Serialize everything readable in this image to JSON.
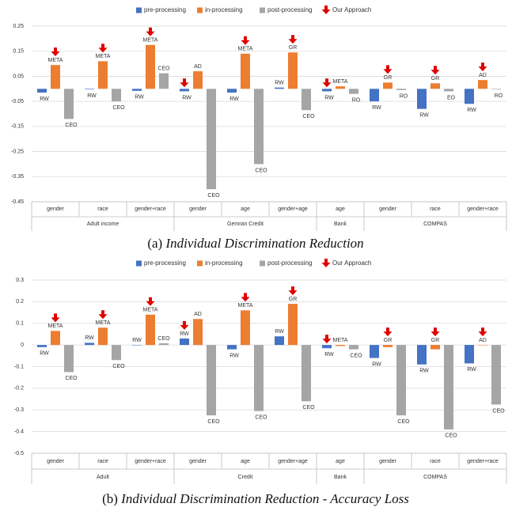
{
  "chart_data": [
    {
      "type": "bar",
      "caption_prefix": "(a)",
      "caption": "Individual Discrimination Reduction",
      "categories": [
        "gender",
        "race",
        "gender+race",
        "gender",
        "age",
        "gender+age",
        "age",
        "gender",
        "race",
        "gender+race"
      ],
      "groups": [
        {
          "name": "Adult income",
          "size": 3
        },
        {
          "name": "Gemran Credit",
          "size": 3
        },
        {
          "name": "Bank",
          "size": 1
        },
        {
          "name": "COMPAS",
          "size": 3
        }
      ],
      "series": [
        {
          "name": "pre-processing",
          "color": "#4472c4",
          "values": [
            -0.015,
            -0.002,
            -0.008,
            -0.01,
            -0.015,
            0.005,
            -0.01,
            -0.05,
            -0.08,
            -0.06
          ],
          "labels": [
            "RW",
            "RW",
            "RW",
            "RW",
            "RW",
            "RW",
            "RW",
            "RW",
            "RW",
            "RW"
          ]
        },
        {
          "name": "in-processing",
          "color": "#ed7d31",
          "values": [
            0.095,
            0.11,
            0.175,
            0.07,
            0.14,
            0.145,
            0.01,
            0.025,
            0.022,
            0.035
          ],
          "labels": [
            "META",
            "META",
            "META",
            "AD",
            "META",
            "GR",
            "META",
            "GR",
            "GR",
            "AD"
          ]
        },
        {
          "name": "post-processing",
          "color": "#a5a5a5",
          "values": [
            -0.12,
            -0.05,
            0.062,
            -0.4,
            -0.3,
            -0.085,
            -0.02,
            -0.005,
            -0.01,
            -0.002
          ],
          "labels": [
            "CEO",
            "CEO",
            "CEO",
            "CEO",
            "CEO",
            "CEO",
            "RO",
            "RO",
            "EO",
            "RO"
          ]
        }
      ],
      "best": [
        "in-processing",
        "in-processing",
        "in-processing",
        "pre-processing",
        "in-processing",
        "in-processing",
        "pre-processing",
        "in-processing",
        "in-processing",
        "in-processing"
      ],
      "approach_label": "Our Approach",
      "approach_color": "#e00000",
      "ylim": [
        -0.45,
        0.25
      ],
      "yticks": [
        0.25,
        0.15,
        0.05,
        -0.05,
        -0.15,
        -0.25,
        -0.35,
        -0.45
      ],
      "grid": true
    },
    {
      "type": "bar",
      "caption_prefix": "(b)",
      "caption": "Individual Discrimination Reduction - Accuracy Loss",
      "categories": [
        "gender",
        "race",
        "gender+race",
        "gender",
        "age",
        "gender+age",
        "age",
        "gender",
        "race",
        "gender+race"
      ],
      "groups": [
        {
          "name": "Adult",
          "size": 3
        },
        {
          "name": "Credit",
          "size": 3
        },
        {
          "name": "Bank",
          "size": 1
        },
        {
          "name": "COMPAS",
          "size": 3
        }
      ],
      "series": [
        {
          "name": "pre-processing",
          "color": "#4472c4",
          "values": [
            -0.01,
            0.01,
            0,
            0.03,
            -0.02,
            0.04,
            -0.015,
            -0.06,
            -0.09,
            -0.085
          ],
          "labels": [
            "RW",
            "RW",
            "RW",
            "RW",
            "RW",
            "RW",
            "RW",
            "RW",
            "RW",
            "RW"
          ]
        },
        {
          "name": "in-processing",
          "color": "#ed7d31",
          "values": [
            0.065,
            0.08,
            0.14,
            0.12,
            0.16,
            0.19,
            -0.005,
            -0.01,
            -0.02,
            0
          ],
          "labels": [
            "META",
            "META",
            "META",
            "AD",
            "META",
            "GR",
            "META",
            "GR",
            "GR",
            "AD"
          ]
        },
        {
          "name": "post-processing",
          "color": "#a5a5a5",
          "values": [
            -0.125,
            -0.07,
            0.008,
            -0.325,
            -0.305,
            -0.26,
            -0.02,
            -0.325,
            -0.39,
            -0.275
          ],
          "labels": [
            "CEO",
            "CEO",
            "CEO",
            "CEO",
            "CEO",
            "CEO",
            "CEO",
            "CEO",
            "CEO",
            "CEO"
          ]
        }
      ],
      "best": [
        "in-processing",
        "in-processing",
        "in-processing",
        "pre-processing",
        "in-processing",
        "in-processing",
        "pre-processing",
        "in-processing",
        "in-processing",
        "in-processing"
      ],
      "approach_label": "Our Approach",
      "approach_color": "#e00000",
      "ylim": [
        -0.5,
        0.3
      ],
      "yticks": [
        0.3,
        0.2,
        0.1,
        0,
        -0.1,
        -0.2,
        -0.3,
        -0.4,
        -0.5
      ],
      "grid": true
    }
  ]
}
